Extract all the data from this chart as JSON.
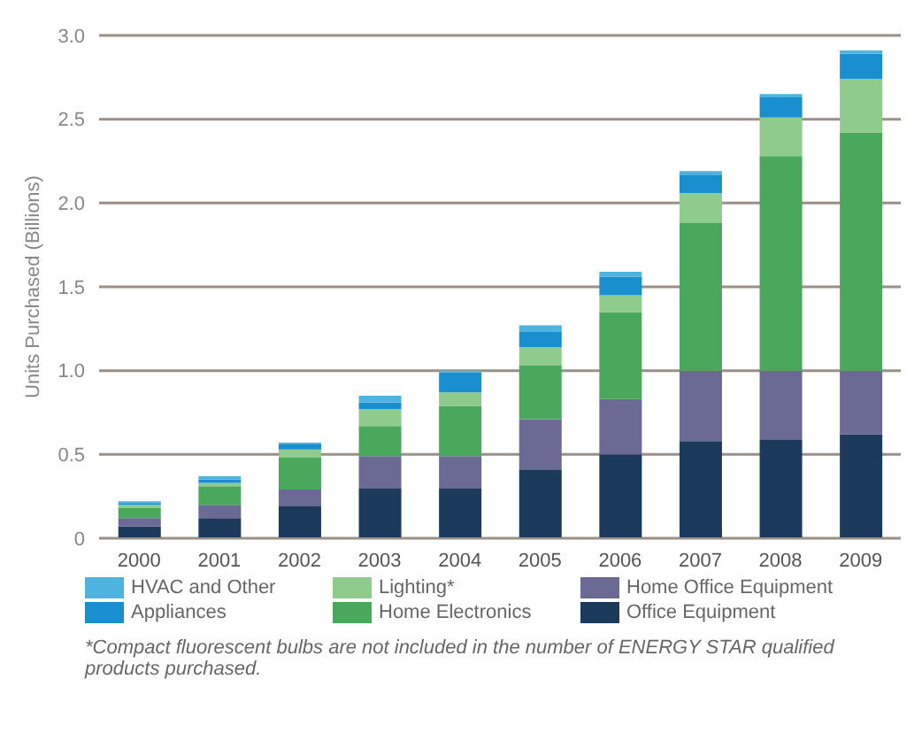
{
  "chart_data": {
    "type": "bar",
    "stacked": true,
    "ylabel": "Units Purchased (Billions)",
    "categories": [
      "2000",
      "2001",
      "2002",
      "2003",
      "2004",
      "2005",
      "2006",
      "2007",
      "2008",
      "2009"
    ],
    "series": [
      {
        "name": "Office Equipment",
        "color": "#1b3a5c",
        "values": [
          0.07,
          0.12,
          0.19,
          0.3,
          0.3,
          0.41,
          0.5,
          0.58,
          0.59,
          0.62
        ]
      },
      {
        "name": "Home Office Equipment",
        "color": "#6b6a94",
        "values": [
          0.05,
          0.08,
          0.1,
          0.19,
          0.19,
          0.3,
          0.33,
          0.42,
          0.41,
          0.38
        ]
      },
      {
        "name": "Home Electronics",
        "color": "#4aa85c",
        "values": [
          0.06,
          0.11,
          0.19,
          0.18,
          0.3,
          0.32,
          0.52,
          0.88,
          1.28,
          1.42
        ]
      },
      {
        "name": "Lighting*",
        "color": "#8fcb8c",
        "values": [
          0.02,
          0.02,
          0.05,
          0.1,
          0.08,
          0.11,
          0.1,
          0.18,
          0.23,
          0.32
        ]
      },
      {
        "name": "Appliances",
        "color": "#1a8fd0",
        "values": [
          0.01,
          0.02,
          0.03,
          0.04,
          0.12,
          0.09,
          0.11,
          0.11,
          0.12,
          0.15
        ]
      },
      {
        "name": "HVAC and Other",
        "color": "#4fb3e0",
        "values": [
          0.01,
          0.02,
          0.01,
          0.04,
          0.01,
          0.04,
          0.03,
          0.02,
          0.02,
          0.02
        ]
      }
    ],
    "ylim": [
      0,
      3
    ],
    "yticks": [
      0,
      {
        "value": 0.5,
        "label": "0.5"
      },
      {
        "value": 1,
        "label": "1.0"
      },
      {
        "value": 1.5,
        "label": "1.5"
      },
      {
        "value": 2,
        "label": "2.0"
      },
      {
        "value": 2.5,
        "label": "2.5"
      },
      {
        "value": 3,
        "label": "3.0"
      }
    ],
    "grid": "y",
    "legend": "bottom",
    "annotations": [
      "*Compact fluorescent bulbs are not included in the number of ENERGY STAR qualified products purchased."
    ]
  }
}
